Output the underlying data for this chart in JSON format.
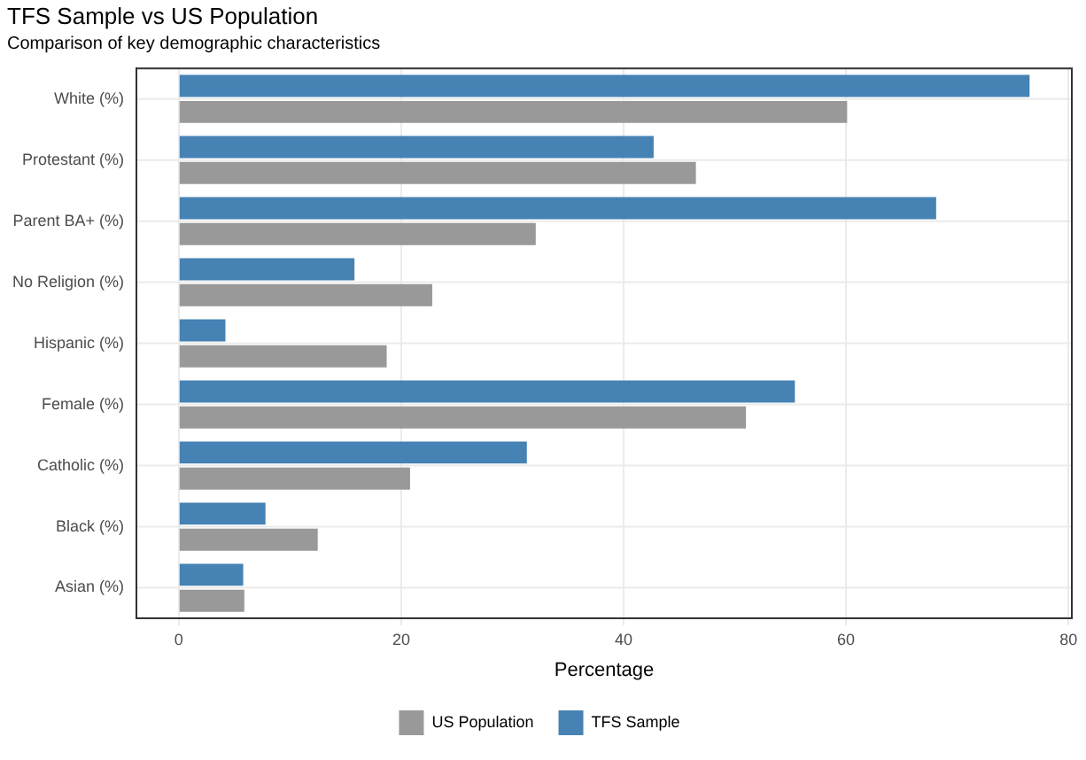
{
  "chart_data": {
    "type": "bar",
    "orientation": "horizontal",
    "title": "TFS Sample vs US Population",
    "subtitle": "Comparison of key demographic characteristics",
    "xlabel": "Percentage",
    "categories": [
      "White (%)",
      "Protestant (%)",
      "Parent BA+ (%)",
      "No Religion (%)",
      "Hispanic (%)",
      "Female (%)",
      "Catholic (%)",
      "Black (%)",
      "Asian (%)"
    ],
    "series": [
      {
        "name": "US Population",
        "color": "#999999",
        "values": [
          60.1,
          46.5,
          32.1,
          22.8,
          18.7,
          51.0,
          20.8,
          12.5,
          5.9
        ]
      },
      {
        "name": "TFS Sample",
        "color": "#4682b4",
        "values": [
          76.5,
          42.7,
          68.1,
          15.8,
          4.2,
          55.4,
          31.3,
          7.8,
          5.8
        ]
      }
    ],
    "xlim": [
      -3.8,
      80.3
    ],
    "xticks": [
      0,
      20,
      40,
      60,
      80
    ],
    "grid": true,
    "legend": "bottom"
  }
}
